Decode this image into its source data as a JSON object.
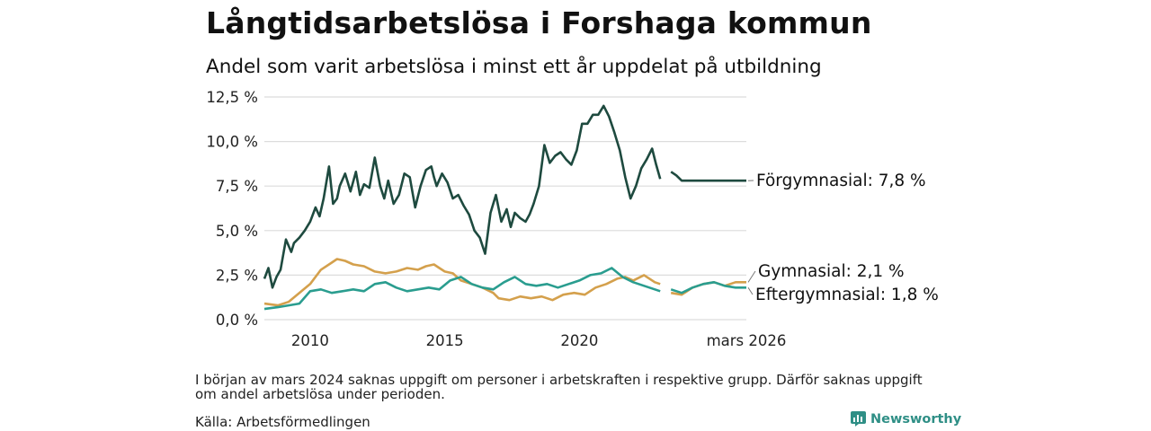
{
  "title": "Långtidsarbetslösa i Forshaga kommun",
  "subtitle": "Andel som varit arbetslösa i minst ett år uppdelat på utbildning",
  "footnote": "I början av mars 2024 saknas uppgift om personer i arbetskraften i respektive grupp. Därför saknas uppgift om andel arbetslösa under perioden.",
  "source": "Källa: Arbetsförmedlingen",
  "brand": "Newsworthy",
  "chart_data": {
    "type": "line",
    "title": "Långtidsarbetslösa i Forshaga kommun",
    "ylim": [
      0,
      12.5
    ],
    "y_ticks": [
      0,
      2.5,
      5.0,
      7.5,
      10.0,
      12.5
    ],
    "y_tick_labels": [
      "0,0 %",
      "2,5 %",
      "5,0 %",
      "7,5 %",
      "10,0 %",
      "12,5 %"
    ],
    "xlim": [
      2008.3,
      2026.2
    ],
    "x_ticks": [
      2010,
      2015,
      2020,
      2026.2
    ],
    "x_tick_labels": [
      "2010",
      "2015",
      "2020",
      "mars 2026"
    ],
    "gap": [
      2023.0,
      2023.4
    ],
    "series": [
      {
        "name": "Förgymnasial",
        "end_label": "Förgymnasial: 7,8 %",
        "color": "#1e4a3f",
        "x": [
          2008.3,
          2008.45,
          2008.6,
          2008.75,
          2008.9,
          2009.1,
          2009.3,
          2009.4,
          2009.6,
          2009.8,
          2010.0,
          2010.2,
          2010.35,
          2010.5,
          2010.7,
          2010.85,
          2011.0,
          2011.1,
          2011.3,
          2011.5,
          2011.7,
          2011.85,
          2012.0,
          2012.2,
          2012.4,
          2012.6,
          2012.75,
          2012.9,
          2013.1,
          2013.3,
          2013.5,
          2013.7,
          2013.9,
          2014.1,
          2014.3,
          2014.5,
          2014.6,
          2014.7,
          2014.9,
          2015.1,
          2015.3,
          2015.5,
          2015.7,
          2015.9,
          2016.1,
          2016.3,
          2016.5,
          2016.7,
          2016.9,
          2017.1,
          2017.3,
          2017.45,
          2017.6,
          2017.8,
          2018.0,
          2018.15,
          2018.3,
          2018.5,
          2018.7,
          2018.9,
          2019.1,
          2019.3,
          2019.5,
          2019.7,
          2019.9,
          2020.1,
          2020.3,
          2020.5,
          2020.7,
          2020.9,
          2021.1,
          2021.3,
          2021.5,
          2021.7,
          2021.9,
          2022.1,
          2022.3,
          2022.5,
          2022.7,
          2022.85,
          2023.0,
          2023.4,
          2023.6,
          2023.8,
          2024.0,
          2024.2,
          2024.4,
          2024.6,
          2024.8,
          2025.0,
          2025.2,
          2025.4,
          2025.6,
          2025.8,
          2026.0,
          2026.2
        ],
        "values": [
          2.3,
          2.9,
          1.8,
          2.4,
          2.8,
          4.5,
          3.8,
          4.3,
          4.6,
          5.0,
          5.5,
          6.3,
          5.8,
          6.8,
          8.6,
          6.5,
          6.8,
          7.5,
          8.2,
          7.2,
          8.3,
          7.0,
          7.6,
          7.4,
          9.1,
          7.5,
          6.8,
          7.8,
          6.5,
          7.0,
          8.2,
          8.0,
          6.3,
          7.5,
          8.4,
          8.6,
          8.0,
          7.5,
          8.2,
          7.7,
          6.8,
          7.0,
          6.4,
          5.9,
          5.0,
          4.6,
          3.7,
          6.0,
          7.0,
          5.5,
          6.2,
          5.2,
          6.0,
          5.7,
          5.5,
          5.9,
          6.5,
          7.5,
          9.8,
          8.8,
          9.2,
          9.4,
          9.0,
          8.7,
          9.5,
          11.0,
          11.0,
          11.5,
          11.5,
          12.0,
          11.4,
          10.5,
          9.5,
          8.0,
          6.8,
          7.5,
          8.5,
          9.0,
          9.6,
          8.7,
          7.9,
          8.3,
          8.1,
          7.8,
          7.8,
          7.8,
          7.8,
          7.8,
          7.8,
          7.8,
          7.8,
          7.8,
          7.8,
          7.8,
          7.8,
          7.8
        ]
      },
      {
        "name": "Gymnasial",
        "end_label": "Gymnasial: 2,1 %",
        "color": "#d4a04c",
        "x": [
          2008.3,
          2008.8,
          2009.2,
          2009.6,
          2010.0,
          2010.4,
          2010.8,
          2011.0,
          2011.3,
          2011.6,
          2012.0,
          2012.4,
          2012.8,
          2013.2,
          2013.6,
          2014.0,
          2014.3,
          2014.6,
          2014.8,
          2015.0,
          2015.3,
          2015.6,
          2016.0,
          2016.4,
          2016.8,
          2017.0,
          2017.4,
          2017.8,
          2018.2,
          2018.6,
          2019.0,
          2019.4,
          2019.8,
          2020.2,
          2020.6,
          2021.0,
          2021.4,
          2021.7,
          2022.0,
          2022.4,
          2022.8,
          2023.0,
          2023.4,
          2023.8,
          2024.2,
          2024.6,
          2025.0,
          2025.4,
          2025.8,
          2026.2
        ],
        "values": [
          0.9,
          0.8,
          1.0,
          1.5,
          2.0,
          2.8,
          3.2,
          3.4,
          3.3,
          3.1,
          3.0,
          2.7,
          2.6,
          2.7,
          2.9,
          2.8,
          3.0,
          3.1,
          2.9,
          2.7,
          2.6,
          2.2,
          2.0,
          1.8,
          1.5,
          1.2,
          1.1,
          1.3,
          1.2,
          1.3,
          1.1,
          1.4,
          1.5,
          1.4,
          1.8,
          2.0,
          2.3,
          2.4,
          2.2,
          2.5,
          2.1,
          2.0,
          1.5,
          1.4,
          1.8,
          2.0,
          2.1,
          1.9,
          2.1,
          2.1
        ]
      },
      {
        "name": "Eftergymnasial",
        "end_label": "Eftergymnasial: 1,8 %",
        "color": "#2a9d8f",
        "x": [
          2008.3,
          2008.8,
          2009.2,
          2009.6,
          2010.0,
          2010.4,
          2010.8,
          2011.2,
          2011.6,
          2012.0,
          2012.4,
          2012.8,
          2013.2,
          2013.6,
          2014.0,
          2014.4,
          2014.8,
          2015.2,
          2015.6,
          2016.0,
          2016.4,
          2016.8,
          2017.2,
          2017.6,
          2018.0,
          2018.4,
          2018.8,
          2019.2,
          2019.6,
          2020.0,
          2020.4,
          2020.8,
          2021.2,
          2021.6,
          2022.0,
          2022.4,
          2022.8,
          2023.0,
          2023.4,
          2023.8,
          2024.2,
          2024.6,
          2025.0,
          2025.4,
          2025.8,
          2026.2
        ],
        "values": [
          0.6,
          0.7,
          0.8,
          0.9,
          1.6,
          1.7,
          1.5,
          1.6,
          1.7,
          1.6,
          2.0,
          2.1,
          1.8,
          1.6,
          1.7,
          1.8,
          1.7,
          2.2,
          2.4,
          2.0,
          1.8,
          1.7,
          2.1,
          2.4,
          2.0,
          1.9,
          2.0,
          1.8,
          2.0,
          2.2,
          2.5,
          2.6,
          2.9,
          2.4,
          2.1,
          1.9,
          1.7,
          1.6,
          1.7,
          1.5,
          1.8,
          2.0,
          2.1,
          1.9,
          1.8,
          1.8
        ]
      }
    ]
  }
}
